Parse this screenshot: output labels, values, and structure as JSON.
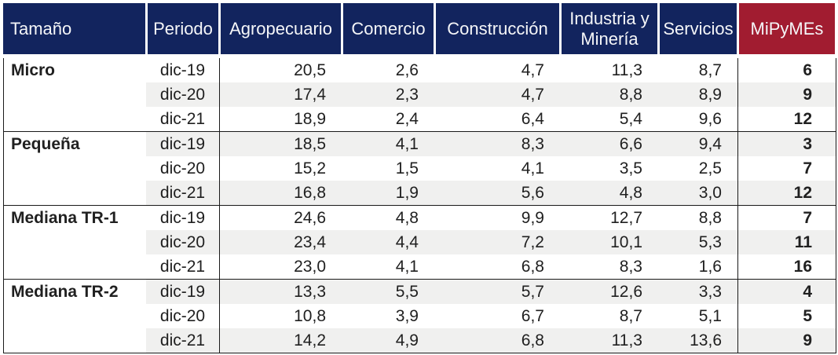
{
  "colors": {
    "header_navy": "#12245e",
    "header_red": "#a11c30",
    "stripe_gray": "#f0f0ef",
    "border": "#1a1a1a",
    "header_text": "#f5f6f8",
    "body_text": "#202020"
  },
  "chart_data": {
    "type": "table",
    "columns": [
      "Tamaño",
      "Periodo",
      "Agropecuario",
      "Comercio",
      "Construcción",
      "Industria y Minería",
      "Servicios",
      "MiPyMEs"
    ],
    "value_columns": [
      "Agropecuario",
      "Comercio",
      "Construcción",
      "Industria y Minería",
      "Servicios"
    ],
    "groups": [
      {
        "size": "Micro",
        "rows": [
          {
            "periodo": "dic-19",
            "values": [
              "20,5",
              "2,6",
              "4,7",
              "11,3",
              "8,7"
            ],
            "mipymes": "6"
          },
          {
            "periodo": "dic-20",
            "values": [
              "17,4",
              "2,3",
              "4,7",
              "8,8",
              "8,9"
            ],
            "mipymes": "9"
          },
          {
            "periodo": "dic-21",
            "values": [
              "18,9",
              "2,4",
              "6,4",
              "5,4",
              "9,6"
            ],
            "mipymes": "12"
          }
        ]
      },
      {
        "size": "Pequeña",
        "rows": [
          {
            "periodo": "dic-19",
            "values": [
              "18,5",
              "4,1",
              "8,3",
              "6,6",
              "9,4"
            ],
            "mipymes": "3"
          },
          {
            "periodo": "dic-20",
            "values": [
              "15,2",
              "1,5",
              "4,1",
              "3,5",
              "2,5"
            ],
            "mipymes": "7"
          },
          {
            "periodo": "dic-21",
            "values": [
              "16,8",
              "1,9",
              "5,6",
              "4,8",
              "3,0"
            ],
            "mipymes": "12"
          }
        ]
      },
      {
        "size": "Mediana TR-1",
        "rows": [
          {
            "periodo": "dic-19",
            "values": [
              "24,6",
              "4,8",
              "9,9",
              "12,7",
              "8,8"
            ],
            "mipymes": "7"
          },
          {
            "periodo": "dic-20",
            "values": [
              "23,4",
              "4,4",
              "7,2",
              "10,1",
              "5,3"
            ],
            "mipymes": "11"
          },
          {
            "periodo": "dic-21",
            "values": [
              "23,0",
              "4,1",
              "6,8",
              "8,3",
              "1,6"
            ],
            "mipymes": "16"
          }
        ]
      },
      {
        "size": "Mediana TR-2",
        "rows": [
          {
            "periodo": "dic-19",
            "values": [
              "13,3",
              "5,5",
              "5,7",
              "12,6",
              "3,3"
            ],
            "mipymes": "4"
          },
          {
            "periodo": "dic-20",
            "values": [
              "10,8",
              "3,9",
              "6,7",
              "8,7",
              "5,1"
            ],
            "mipymes": "5"
          },
          {
            "periodo": "dic-21",
            "values": [
              "14,2",
              "4,9",
              "6,8",
              "11,3",
              "13,6"
            ],
            "mipymes": "9"
          }
        ]
      }
    ]
  }
}
